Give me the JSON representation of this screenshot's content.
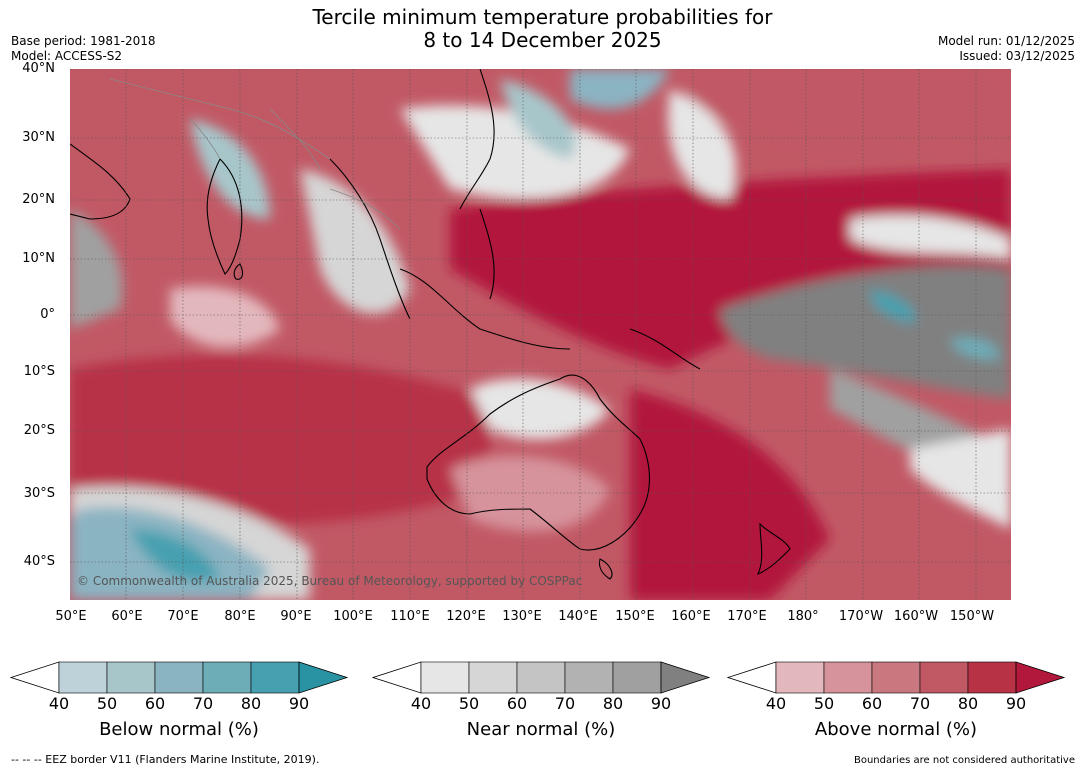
{
  "title": {
    "line1": "Tercile minimum temperature probabilities for",
    "line2": "8 to 14 December 2025"
  },
  "meta": {
    "base_period": "Base period: 1981-2018",
    "model": "Model: ACCESS-S2",
    "model_run": "Model run: 01/12/2025",
    "issued": "Issued: 03/12/2025"
  },
  "map": {
    "latitudes": [
      {
        "label": "40°N",
        "lat": 40
      },
      {
        "label": "30°N",
        "lat": 30
      },
      {
        "label": "20°N",
        "lat": 20
      },
      {
        "label": "10°N",
        "lat": 10
      },
      {
        "label": "0°",
        "lat": 0
      },
      {
        "label": "10°S",
        "lat": -10
      },
      {
        "label": "20°S",
        "lat": -20
      },
      {
        "label": "30°S",
        "lat": -30
      },
      {
        "label": "40°S",
        "lat": -40
      }
    ],
    "longitudes": [
      {
        "label": "50°E",
        "lon": 50
      },
      {
        "label": "60°E",
        "lon": 60
      },
      {
        "label": "70°E",
        "lon": 70
      },
      {
        "label": "80°E",
        "lon": 80
      },
      {
        "label": "90°E",
        "lon": 90
      },
      {
        "label": "100°E",
        "lon": 100
      },
      {
        "label": "110°E",
        "lon": 110
      },
      {
        "label": "120°E",
        "lon": 120
      },
      {
        "label": "130°E",
        "lon": 130
      },
      {
        "label": "140°E",
        "lon": 140
      },
      {
        "label": "150°E",
        "lon": 150
      },
      {
        "label": "160°E",
        "lon": 160
      },
      {
        "label": "170°E",
        "lon": 170
      },
      {
        "label": "180°",
        "lon": 180
      },
      {
        "label": "170°W",
        "lon": 190
      },
      {
        "label": "160°W",
        "lon": 200
      },
      {
        "label": "150°W",
        "lon": 210
      }
    ],
    "extent": {
      "lon_min": 50,
      "lon_max": 216,
      "lat_min": -47,
      "lat_max": 40
    },
    "copyright": "© Commonwealth of Australia 2025, Bureau of Meteorology, supported by COSPPac"
  },
  "colorbars": [
    {
      "label": "Below normal (%)",
      "ticks": [
        "40",
        "50",
        "60",
        "70",
        "80",
        "90"
      ],
      "colors": [
        "#bed3d9",
        "#a7c6ca",
        "#8bb4c2",
        "#6dadb8",
        "#46a0b0",
        "#2a93a3"
      ]
    },
    {
      "label": "Near normal (%)",
      "ticks": [
        "40",
        "50",
        "60",
        "70",
        "80",
        "90"
      ],
      "colors": [
        "#e6e6e6",
        "#d6d6d6",
        "#c4c4c4",
        "#b2b2b2",
        "#a0a0a0",
        "#808080"
      ]
    },
    {
      "label": "Above normal (%)",
      "ticks": [
        "40",
        "50",
        "60",
        "70",
        "80",
        "90"
      ],
      "colors": [
        "#e3b8bd",
        "#d6939b",
        "#ca7880",
        "#c15965",
        "#b83246",
        "#b2183c"
      ]
    }
  ],
  "footer": {
    "eez": "--  --  -- EEZ border V11 (Flanders Marine Institute, 2019).",
    "boundaries": "Boundaries are not considered authoritative"
  }
}
